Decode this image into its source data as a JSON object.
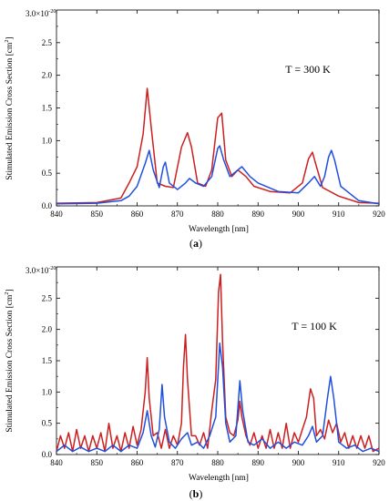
{
  "chart_data": [
    {
      "type": "line",
      "xlabel": "Wavelength [nm]",
      "ylabel": "Stimulated Emission Cross Section [cm",
      "ylabel_sup": "2",
      "ylabel_close": "]",
      "y_top_label": "3.0×10",
      "y_top_exp": "-20",
      "annotation": "T = 300 K",
      "panel_label_open": "(",
      "panel_label_letter": "a",
      "panel_label_close": ")",
      "xlim": [
        840,
        920
      ],
      "ylim": [
        0,
        3.0
      ],
      "x_ticks": [
        "840",
        "850",
        "860",
        "870",
        "880",
        "890",
        "900",
        "910",
        "920"
      ],
      "y_ticks": [
        "0.0",
        "0.5",
        "1.0",
        "1.5",
        "2.0",
        "2.5"
      ],
      "grid": false,
      "series": [
        {
          "color": "#cc1f1f",
          "points": [
            [
              840,
              0.04
            ],
            [
              850,
              0.05
            ],
            [
              856,
              0.12
            ],
            [
              858,
              0.35
            ],
            [
              860,
              0.6
            ],
            [
              861.5,
              1.1
            ],
            [
              862.5,
              1.8
            ],
            [
              863.5,
              1.2
            ],
            [
              865,
              0.35
            ],
            [
              867,
              0.3
            ],
            [
              869,
              0.28
            ],
            [
              871,
              0.9
            ],
            [
              872.5,
              1.12
            ],
            [
              873.5,
              0.9
            ],
            [
              875,
              0.35
            ],
            [
              877,
              0.3
            ],
            [
              878.5,
              0.55
            ],
            [
              880,
              1.35
            ],
            [
              881,
              1.42
            ],
            [
              882,
              0.7
            ],
            [
              883.5,
              0.45
            ],
            [
              885,
              0.55
            ],
            [
              887,
              0.45
            ],
            [
              889,
              0.3
            ],
            [
              893,
              0.22
            ],
            [
              898,
              0.2
            ],
            [
              901,
              0.35
            ],
            [
              902.5,
              0.72
            ],
            [
              903.5,
              0.82
            ],
            [
              904.5,
              0.6
            ],
            [
              906,
              0.28
            ],
            [
              910,
              0.15
            ],
            [
              915,
              0.05
            ],
            [
              920,
              0.04
            ]
          ]
        },
        {
          "color": "#1f4fdf",
          "points": [
            [
              840,
              0.03
            ],
            [
              850,
              0.04
            ],
            [
              856,
              0.08
            ],
            [
              858,
              0.15
            ],
            [
              860,
              0.3
            ],
            [
              862,
              0.65
            ],
            [
              863,
              0.85
            ],
            [
              864,
              0.55
            ],
            [
              865.5,
              0.28
            ],
            [
              866.5,
              0.6
            ],
            [
              867,
              0.67
            ],
            [
              868,
              0.35
            ],
            [
              870,
              0.25
            ],
            [
              872,
              0.35
            ],
            [
              873,
              0.42
            ],
            [
              874.5,
              0.35
            ],
            [
              876.5,
              0.3
            ],
            [
              878.5,
              0.45
            ],
            [
              880,
              0.88
            ],
            [
              880.5,
              0.92
            ],
            [
              881.5,
              0.7
            ],
            [
              883,
              0.45
            ],
            [
              885,
              0.55
            ],
            [
              886,
              0.6
            ],
            [
              888,
              0.45
            ],
            [
              890,
              0.35
            ],
            [
              895,
              0.22
            ],
            [
              900,
              0.2
            ],
            [
              902.5,
              0.35
            ],
            [
              904,
              0.45
            ],
            [
              905.5,
              0.3
            ],
            [
              906.5,
              0.45
            ],
            [
              907.5,
              0.75
            ],
            [
              908.2,
              0.85
            ],
            [
              909,
              0.7
            ],
            [
              910.5,
              0.3
            ],
            [
              915,
              0.08
            ],
            [
              920,
              0.03
            ]
          ]
        }
      ]
    },
    {
      "type": "line",
      "xlabel": "Wavelength [nm]",
      "ylabel": "Stimulated Emission Cross Section [cm",
      "ylabel_sup": "2",
      "ylabel_close": "]",
      "y_top_label": "3.0×10",
      "y_top_exp": "-20",
      "annotation": "T = 100 K",
      "panel_label_open": "(",
      "panel_label_letter": "b",
      "panel_label_close": ")",
      "xlim": [
        840,
        920
      ],
      "ylim": [
        0,
        3.0
      ],
      "x_ticks": [
        "840",
        "850",
        "860",
        "870",
        "880",
        "890",
        "900",
        "910",
        "920"
      ],
      "y_ticks": [
        "0.0",
        "0.5",
        "1.0",
        "1.5",
        "2.0",
        "2.5"
      ],
      "grid": false,
      "series": [
        {
          "color": "#cc1f1f",
          "points": [
            [
              840,
              0.05
            ],
            [
              841,
              0.3
            ],
            [
              842,
              0.1
            ],
            [
              843,
              0.35
            ],
            [
              844,
              0.05
            ],
            [
              845,
              0.4
            ],
            [
              846,
              0.1
            ],
            [
              847,
              0.3
            ],
            [
              848,
              0.05
            ],
            [
              849,
              0.3
            ],
            [
              850,
              0.1
            ],
            [
              851,
              0.35
            ],
            [
              852,
              0.05
            ],
            [
              853,
              0.5
            ],
            [
              854,
              0.1
            ],
            [
              855,
              0.3
            ],
            [
              856,
              0.05
            ],
            [
              857,
              0.35
            ],
            [
              858,
              0.1
            ],
            [
              859,
              0.45
            ],
            [
              860,
              0.15
            ],
            [
              861,
              0.4
            ],
            [
              862,
              1.0
            ],
            [
              862.5,
              1.55
            ],
            [
              863,
              0.9
            ],
            [
              864,
              0.3
            ],
            [
              865,
              0.35
            ],
            [
              866,
              0.1
            ],
            [
              867,
              0.4
            ],
            [
              868,
              0.1
            ],
            [
              869,
              0.3
            ],
            [
              870,
              0.15
            ],
            [
              871,
              0.5
            ],
            [
              871.5,
              1.4
            ],
            [
              872,
              1.92
            ],
            [
              872.5,
              1.2
            ],
            [
              873.5,
              0.3
            ],
            [
              874.5,
              0.3
            ],
            [
              875.5,
              0.15
            ],
            [
              876.5,
              0.35
            ],
            [
              877.5,
              0.1
            ],
            [
              878.5,
              0.7
            ],
            [
              879.5,
              1.2
            ],
            [
              880.2,
              2.6
            ],
            [
              880.7,
              2.88
            ],
            [
              881.2,
              1.8
            ],
            [
              882,
              0.6
            ],
            [
              883,
              0.35
            ],
            [
              884,
              0.3
            ],
            [
              885,
              0.55
            ],
            [
              885.5,
              0.85
            ],
            [
              886,
              0.6
            ],
            [
              887,
              0.3
            ],
            [
              888,
              0.15
            ],
            [
              889,
              0.35
            ],
            [
              890,
              0.1
            ],
            [
              891,
              0.3
            ],
            [
              892,
              0.1
            ],
            [
              893,
              0.4
            ],
            [
              894,
              0.1
            ],
            [
              895,
              0.35
            ],
            [
              896,
              0.1
            ],
            [
              897,
              0.5
            ],
            [
              898,
              0.1
            ],
            [
              899,
              0.35
            ],
            [
              900,
              0.2
            ],
            [
              901,
              0.4
            ],
            [
              902,
              0.6
            ],
            [
              903,
              1.05
            ],
            [
              903.8,
              0.9
            ],
            [
              904.5,
              0.3
            ],
            [
              905.5,
              0.4
            ],
            [
              906.5,
              0.25
            ],
            [
              907.5,
              0.55
            ],
            [
              908.5,
              0.35
            ],
            [
              909.5,
              0.5
            ],
            [
              910.5,
              0.2
            ],
            [
              911.5,
              0.35
            ],
            [
              912.5,
              0.1
            ],
            [
              913.5,
              0.3
            ],
            [
              914.5,
              0.1
            ],
            [
              915.5,
              0.3
            ],
            [
              916.5,
              0.1
            ],
            [
              917.5,
              0.3
            ],
            [
              918.5,
              0.05
            ],
            [
              920,
              0.1
            ]
          ]
        },
        {
          "color": "#1f4fdf",
          "points": [
            [
              840,
              0.05
            ],
            [
              842,
              0.15
            ],
            [
              844,
              0.05
            ],
            [
              846,
              0.12
            ],
            [
              848,
              0.05
            ],
            [
              850,
              0.1
            ],
            [
              852,
              0.05
            ],
            [
              854,
              0.15
            ],
            [
              856,
              0.05
            ],
            [
              858,
              0.15
            ],
            [
              860,
              0.1
            ],
            [
              861.5,
              0.35
            ],
            [
              862.5,
              0.7
            ],
            [
              863.5,
              0.3
            ],
            [
              864.5,
              0.12
            ],
            [
              865.5,
              0.4
            ],
            [
              866.2,
              1.12
            ],
            [
              866.8,
              0.6
            ],
            [
              868,
              0.2
            ],
            [
              869.5,
              0.1
            ],
            [
              871,
              0.25
            ],
            [
              872.5,
              0.35
            ],
            [
              873.5,
              0.15
            ],
            [
              875,
              0.2
            ],
            [
              876.5,
              0.1
            ],
            [
              878,
              0.3
            ],
            [
              879.5,
              0.6
            ],
            [
              880.5,
              1.78
            ],
            [
              881.2,
              1.4
            ],
            [
              882,
              0.5
            ],
            [
              883,
              0.2
            ],
            [
              884.5,
              0.3
            ],
            [
              885.5,
              1.18
            ],
            [
              886.2,
              0.7
            ],
            [
              887.5,
              0.2
            ],
            [
              889,
              0.15
            ],
            [
              891,
              0.25
            ],
            [
              893,
              0.1
            ],
            [
              895,
              0.2
            ],
            [
              897,
              0.1
            ],
            [
              899,
              0.2
            ],
            [
              901,
              0.15
            ],
            [
              902.5,
              0.3
            ],
            [
              903.5,
              0.45
            ],
            [
              904.5,
              0.2
            ],
            [
              906,
              0.3
            ],
            [
              907.2,
              0.9
            ],
            [
              908,
              1.25
            ],
            [
              908.8,
              0.9
            ],
            [
              910,
              0.2
            ],
            [
              912,
              0.1
            ],
            [
              914,
              0.15
            ],
            [
              916,
              0.05
            ],
            [
              918,
              0.1
            ],
            [
              920,
              0.05
            ]
          ]
        }
      ]
    }
  ]
}
